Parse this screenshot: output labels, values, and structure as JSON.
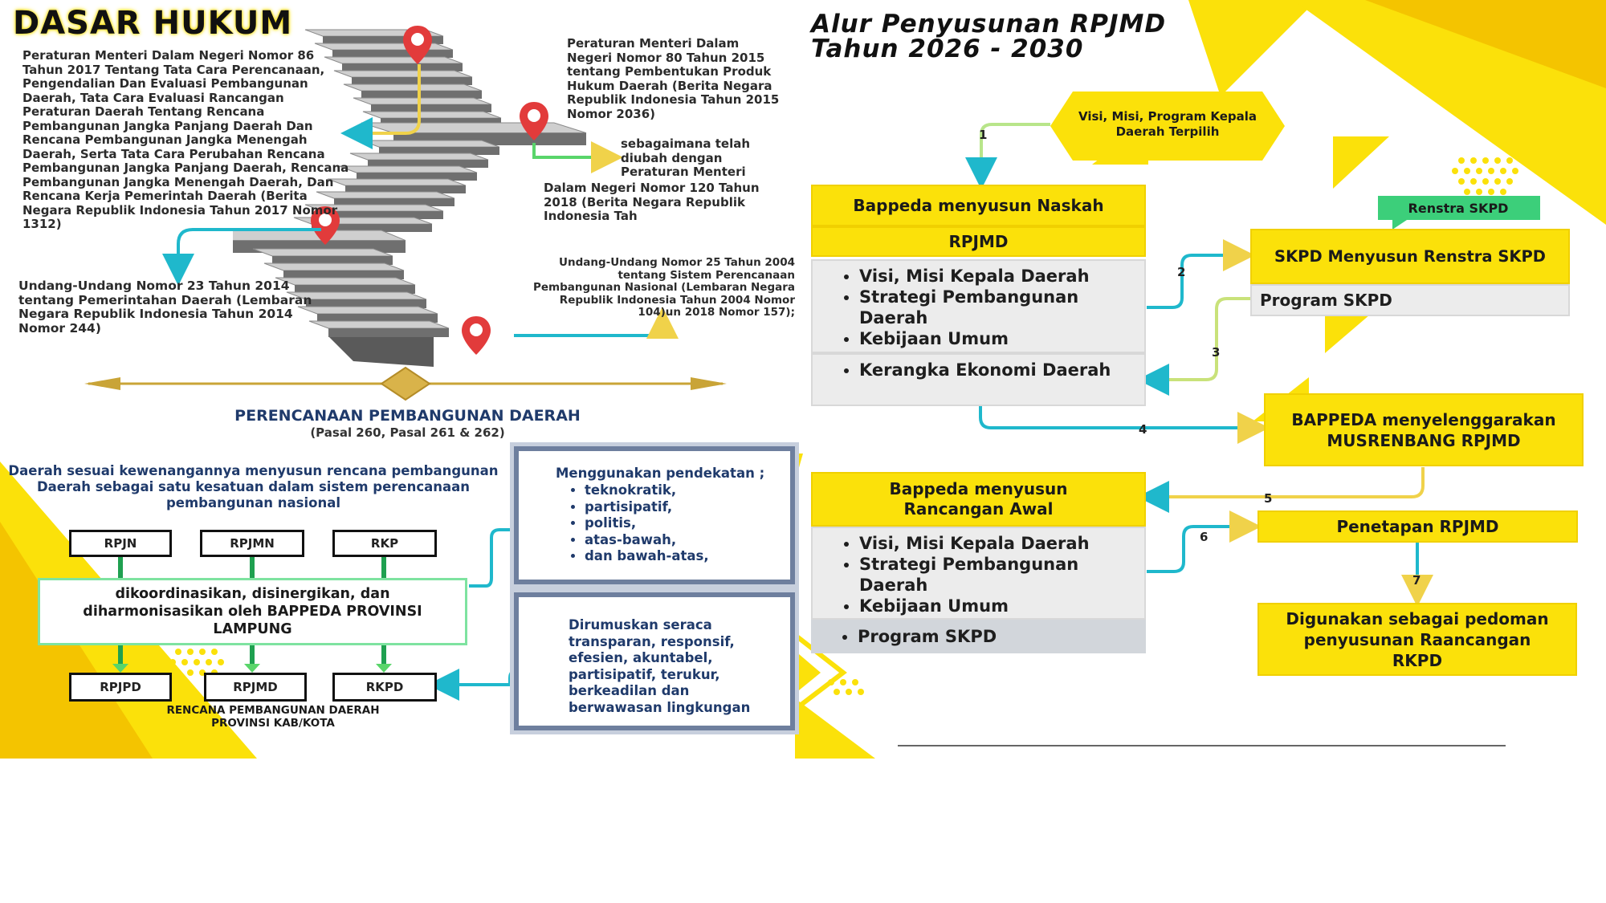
{
  "left": {
    "title": "DASAR HUKUM",
    "laws": {
      "permendagri86": "Peraturan Menteri Dalam Negeri Nomor 86 Tahun 2017 Tentang Tata Cara Perencanaan, Pengendalian Dan Evaluasi Pembangunan Daerah, Tata Cara Evaluasi Rancangan Peraturan Daerah Tentang Rencana Pembangunan Jangka Panjang Daerah Dan Rencana Pembangunan Jangka Menengah Daerah, Serta Tata Cara Perubahan Rencana Pembangunan Jangka Panjang Daerah, Rencana Pembangunan Jangka Menengah Daerah, Dan Rencana Kerja Pemerintah Daerah (Berita Negara Republik Indonesia Tahun 2017 Nomor 1312)",
      "permendagri80": "Peraturan Menteri Dalam Negeri Nomor 80 Tahun 2015 tentang Pembentukan Produk Hukum Daerah (Berita Negara Republik Indonesia Tahun 2015 Nomor 2036)",
      "amended_intro": "sebagaimana telah diubah dengan Peraturan Menteri",
      "amended_rest": "Dalam Negeri Nomor 120 Tahun 2018 (Berita Negara Republik Indonesia Tah",
      "uu23": "Undang-Undang Nomor 23 Tahun 2014 tentang Pemerintahan Daerah (Lembaran Negara Republik Indonesia Tahun 2014 Nomor 244)",
      "uu25": "Undang-Undang Nomor 25 Tahun 2004 tentang Sistem Perencanaan Pembangunan Nasional (Lembaran Negara Republik Indonesia Tahun 2004 Nomor 104)un 2018 Nomor 157);"
    },
    "perencanaan": {
      "title": "PERENCANAAN PEMBANGUNAN DAERAH",
      "subtitle": "(Pasal 260, Pasal 261 & 262)",
      "intro": "Daerah sesuai kewenangannya menyusun rencana pembangunan Daerah sebagai satu kesatuan dalam sistem perencanaan pembangunan nasional",
      "top_boxes": [
        "RPJN",
        "RPJMN",
        "RKP"
      ],
      "coord": "dikoordinasikan, disinergikan, dan diharmonisasikan oleh BAPPEDA PROVINSI LAMPUNG",
      "bottom_boxes": [
        "RPJPD",
        "RPJMD",
        "RKPD"
      ],
      "caption_line1": "RENCANA PEMBANGUNAN DAERAH",
      "caption_line2": "PROVINSI KAB/KOTA",
      "approach_title": "Menggunakan pendekatan ;",
      "approach_items": [
        "teknokratik,",
        "partisipatif,",
        "politis,",
        "atas-bawah,",
        "dan bawah-atas,"
      ],
      "principles": "Dirumuskan seraca transparan, responsif, efesien, akuntabel, partisipatif, terukur, berkeadilan dan berwawasan lingkungan"
    }
  },
  "right": {
    "title_line1": "Alur Penyusunan RPJMD",
    "title_line2": "Tahun 2026 - 2030",
    "visi_box": "Visi, Misi, Program Kepala Daerah Terpilih",
    "naskah_header": "Bappeda menyusun Naskah",
    "naskah_sub": "RPJMD",
    "naskah_items": [
      "Visi, Misi Kepala Daerah",
      "Strategi Pembangunan Daerah",
      "Kebijaan Umum"
    ],
    "naskah_extra": "Kerangka Ekonomi Daerah",
    "renstra_tag": "Renstra SKPD",
    "skpd_box": "SKPD Menyusun Renstra SKPD",
    "program_skpd": "Program SKPD",
    "musrenbang": "BAPPEDA menyelenggarakan MUSRENBANG RPJMD",
    "rancangan_header": "Bappeda menyusun Rancangan Awal",
    "rancangan_items": [
      "Visi, Misi Kepala Daerah",
      "Strategi Pembangunan Daerah",
      "Kebijaan Umum"
    ],
    "rancangan_extra": "Program SKPD",
    "penetapan": "Penetapan RPJMD",
    "digunakan": "Digunakan sebagai pedoman penyusunan Raancangan RKPD",
    "step_numbers": [
      "1",
      "2",
      "3",
      "4",
      "5",
      "6",
      "7"
    ]
  },
  "colors": {
    "yellow": "#fbe10a",
    "teal": "#1fb8cc",
    "lightyellow": "#f5e58a",
    "green": "#59d56a",
    "navy": "#1f3a6b",
    "pin": "#e23b3b"
  }
}
